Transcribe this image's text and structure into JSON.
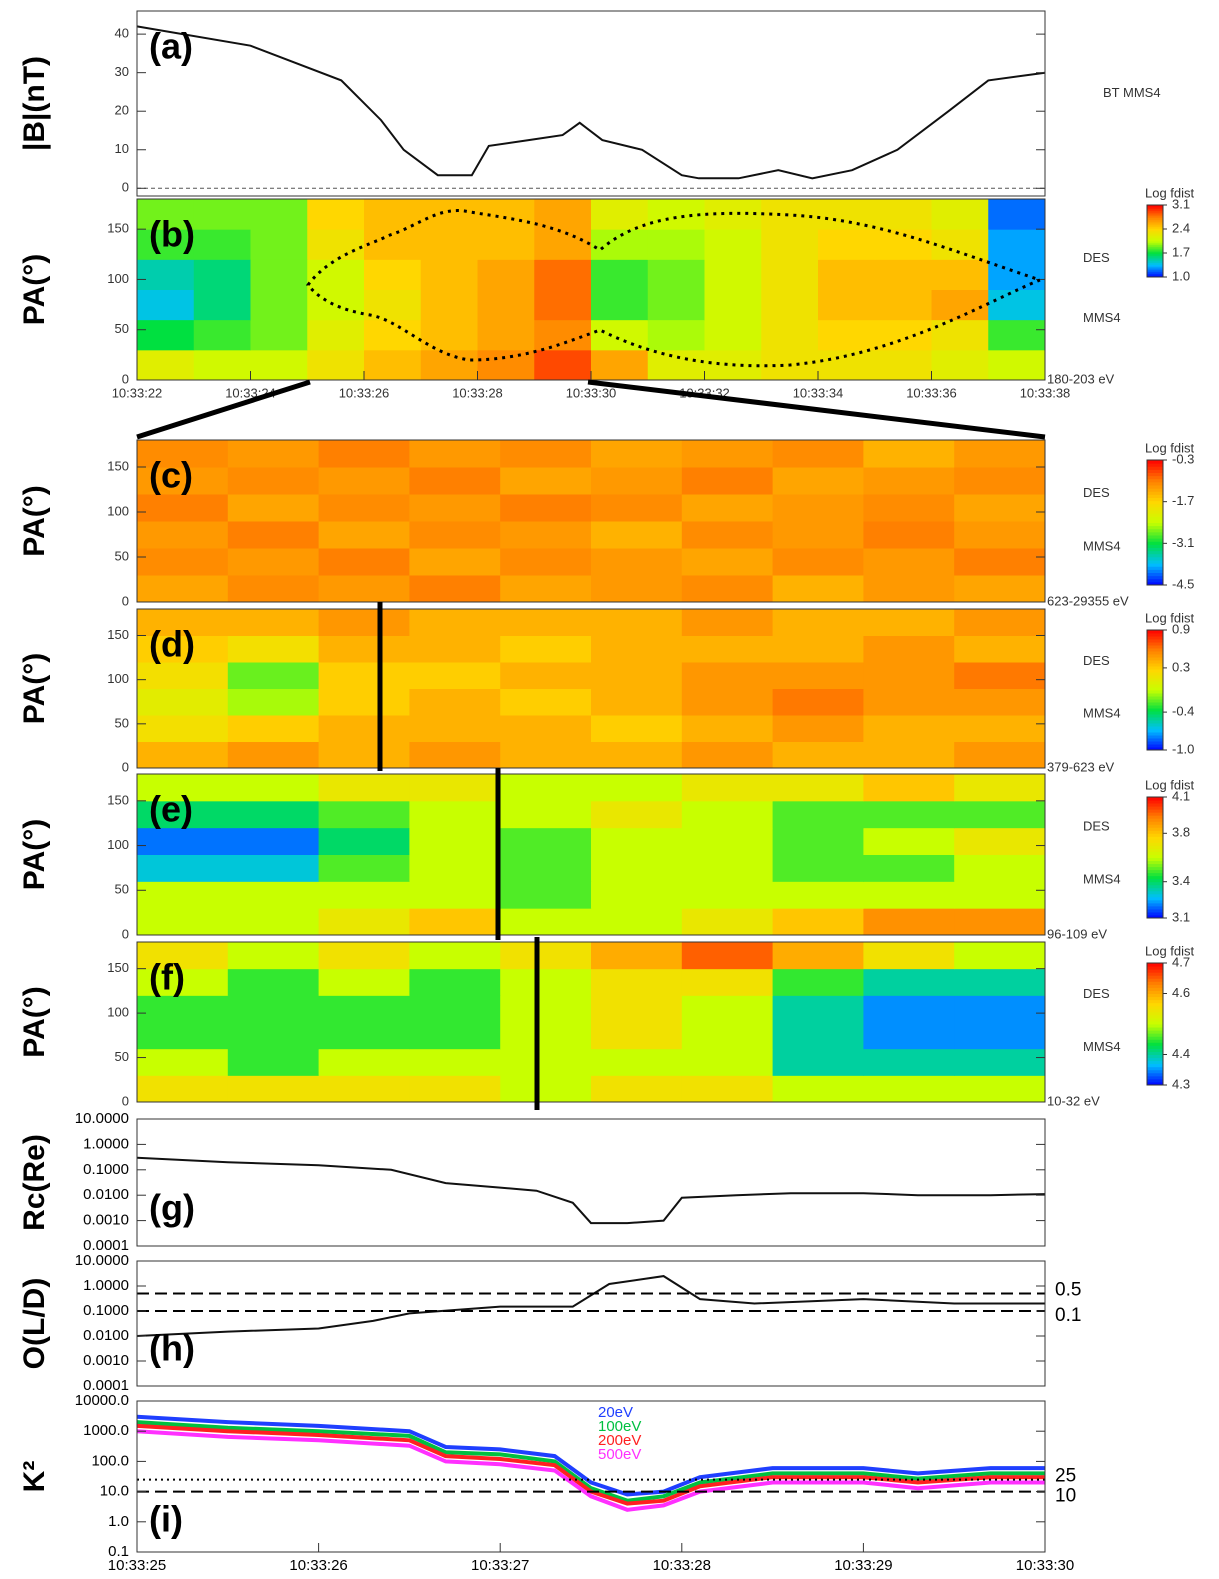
{
  "chart_data": [
    {
      "type": "line",
      "ylabel": "|B|(nT)",
      "panel_label": "(a)",
      "legend": "right",
      "xlim": [
        22,
        38
      ],
      "ylim": [
        -2,
        46
      ],
      "yticks": [
        0,
        10,
        20,
        30,
        40
      ],
      "zero_line": true,
      "x": [
        22,
        24,
        25.6,
        26.3,
        26.7,
        27.3,
        27.9,
        28.2,
        28.9,
        29.5,
        29.8,
        30.2,
        30.9,
        31.6,
        31.9,
        32.6,
        33.3,
        33.9,
        34.6,
        35.4,
        36.3,
        37,
        38
      ],
      "series": [
        {
          "name": "BT MMS4",
          "color": "#111111",
          "values": [
            42,
            37,
            28,
            17.7,
            10,
            3.4,
            3.4,
            11,
            12.5,
            13.8,
            17,
            12.5,
            10,
            3.4,
            2.6,
            2.6,
            4.7,
            2.6,
            4.7,
            10,
            20,
            28,
            30
          ]
        }
      ]
    },
    {
      "type": "heatmap",
      "ylabel": "PA(°)",
      "panel_label": "(b)",
      "side_labels": [
        "DES",
        "MMS4",
        "180-203 eV"
      ],
      "xlim": [
        22,
        38
      ],
      "ylim": [
        0,
        180
      ],
      "yticks": [
        0,
        50,
        100,
        150
      ],
      "xticks": [
        {
          "value": 22,
          "label": "10:33:22"
        },
        {
          "value": 24,
          "label": "10:33:24"
        },
        {
          "value": 26,
          "label": "10:33:26"
        },
        {
          "value": 28,
          "label": "10:33:28"
        },
        {
          "value": 30,
          "label": "10:33:30"
        },
        {
          "value": 32,
          "label": "10:33:32"
        },
        {
          "value": 34,
          "label": "10:33:34"
        },
        {
          "value": 36,
          "label": "10:33:36"
        },
        {
          "value": 38,
          "label": "10:33:38"
        }
      ],
      "xbins": [
        22,
        23,
        24,
        25,
        26,
        27,
        28,
        29,
        30,
        31,
        32,
        33,
        34,
        35,
        36,
        37,
        38
      ],
      "ybins": [
        0,
        30,
        60,
        90,
        120,
        150,
        180
      ],
      "z": [
        [
          2.2,
          2.1,
          2.1,
          2.3,
          2.5,
          2.6,
          2.7,
          2.9,
          2.6,
          2.2,
          2.2,
          2.3,
          2.3,
          2.3,
          2.2,
          2.1
        ],
        [
          1.7,
          1.8,
          1.9,
          2.2,
          2.4,
          2.5,
          2.6,
          2.7,
          2.1,
          2.0,
          2.1,
          2.3,
          2.4,
          2.4,
          2.3,
          1.8
        ],
        [
          1.4,
          1.6,
          1.9,
          2.1,
          2.3,
          2.5,
          2.6,
          2.8,
          1.8,
          1.9,
          2.1,
          2.3,
          2.5,
          2.5,
          2.6,
          1.4
        ],
        [
          1.5,
          1.6,
          1.9,
          2.1,
          2.4,
          2.5,
          2.6,
          2.8,
          1.8,
          1.9,
          2.1,
          2.3,
          2.5,
          2.5,
          2.5,
          1.3
        ],
        [
          1.8,
          1.8,
          1.9,
          2.3,
          2.5,
          2.5,
          2.5,
          2.6,
          2.0,
          2.0,
          2.1,
          2.3,
          2.4,
          2.4,
          2.3,
          1.3
        ],
        [
          1.9,
          1.9,
          1.9,
          2.4,
          2.5,
          2.5,
          2.5,
          2.6,
          2.2,
          2.1,
          2.2,
          2.3,
          2.3,
          2.3,
          2.2,
          1.2
        ]
      ],
      "colorbar_title": "Log fdist",
      "zlim": [
        1.0,
        3.1
      ],
      "zticks": [
        3.1,
        2.4,
        1.7,
        {
          "value": 1.0,
          "label": "1.0"
        }
      ],
      "colormap": [
        "#0000ff",
        "#00bfff",
        "#00e040",
        "#c8ff00",
        "#ffd700",
        "#ff8000",
        "#ff0000"
      ]
    },
    {
      "type": "heatmap",
      "ylabel": "PA(°)",
      "panel_label": "(c)",
      "side_labels": [
        "DES",
        "MMS4",
        "623-29355 eV"
      ],
      "xlim": [
        25,
        30
      ],
      "ylim": [
        0,
        180
      ],
      "yticks": [
        0,
        50,
        100,
        150
      ],
      "xbins": [
        25,
        25.5,
        26,
        26.5,
        27,
        27.5,
        28,
        28.5,
        29,
        29.5,
        30
      ],
      "ybins": [
        0,
        30,
        60,
        90,
        120,
        150,
        180
      ],
      "z": [
        [
          -1.3,
          -1.1,
          -1.2,
          -1.0,
          -1.3,
          -1.2,
          -1.1,
          -1.4,
          -1.2,
          -1.3
        ],
        [
          -1.1,
          -1.2,
          -1.0,
          -1.3,
          -1.1,
          -1.2,
          -1.3,
          -1.1,
          -1.2,
          -1.0
        ],
        [
          -1.2,
          -1.0,
          -1.3,
          -1.1,
          -1.2,
          -1.4,
          -1.1,
          -1.2,
          -1.0,
          -1.2
        ],
        [
          -1.0,
          -1.3,
          -1.1,
          -1.2,
          -1.0,
          -1.1,
          -1.3,
          -1.2,
          -1.1,
          -1.3
        ],
        [
          -1.2,
          -1.1,
          -1.2,
          -1.0,
          -1.3,
          -1.2,
          -1.0,
          -1.3,
          -1.2,
          -1.1
        ],
        [
          -1.1,
          -1.2,
          -1.0,
          -1.2,
          -1.1,
          -1.3,
          -1.2,
          -1.1,
          -1.4,
          -1.2
        ]
      ],
      "colorbar_title": "Log fdist",
      "zlim": [
        -4.5,
        -0.3
      ],
      "zticks": [
        -0.3,
        -1.7,
        -3.1,
        -4.5
      ],
      "colormap": [
        "#0000ff",
        "#00bfff",
        "#00e040",
        "#c8ff00",
        "#ffd700",
        "#ff8000",
        "#ff0000"
      ]
    },
    {
      "type": "heatmap",
      "ylabel": "PA(°)",
      "panel_label": "(d)",
      "side_labels": [
        "DES",
        "MMS4",
        "379-623 eV"
      ],
      "xlim": [
        25,
        30
      ],
      "ylim": [
        0,
        180
      ],
      "yticks": [
        0,
        50,
        100,
        150
      ],
      "xbins": [
        25,
        25.5,
        26,
        26.5,
        27,
        27.5,
        28,
        28.5,
        29,
        29.5,
        30
      ],
      "ybins": [
        0,
        30,
        60,
        90,
        120,
        150,
        180
      ],
      "z": [
        [
          0.4,
          0.5,
          0.4,
          0.5,
          0.4,
          0.4,
          0.5,
          0.4,
          0.4,
          0.5
        ],
        [
          0.2,
          0.3,
          0.4,
          0.4,
          0.4,
          0.3,
          0.4,
          0.5,
          0.4,
          0.4
        ],
        [
          0.1,
          -0.1,
          0.3,
          0.4,
          0.3,
          0.4,
          0.5,
          0.6,
          0.5,
          0.5
        ],
        [
          0.2,
          -0.2,
          0.3,
          0.3,
          0.4,
          0.4,
          0.5,
          0.5,
          0.5,
          0.6
        ],
        [
          0.3,
          0.2,
          0.4,
          0.4,
          0.3,
          0.4,
          0.4,
          0.4,
          0.5,
          0.4
        ],
        [
          0.4,
          0.4,
          0.5,
          0.4,
          0.4,
          0.4,
          0.5,
          0.4,
          0.4,
          0.5
        ]
      ],
      "colorbar_title": "Log fdist",
      "zlim": [
        -1.0,
        0.9
      ],
      "zticks": [
        0.9,
        0.3,
        -0.4,
        {
          "value": -1.0,
          "label": "-1.0"
        }
      ],
      "colormap": [
        "#0000ff",
        "#00bfff",
        "#00e040",
        "#c8ff00",
        "#ffd700",
        "#ff8000",
        "#ff0000"
      ]
    },
    {
      "type": "heatmap",
      "ylabel": "PA(°)",
      "panel_label": "(e)",
      "side_labels": [
        "DES",
        "MMS4",
        "96-109 eV"
      ],
      "xlim": [
        25,
        30
      ],
      "ylim": [
        0,
        180
      ],
      "yticks": [
        0,
        50,
        100,
        150
      ],
      "xbins": [
        25,
        25.5,
        26,
        26.5,
        27,
        27.5,
        28,
        28.5,
        29,
        29.5,
        30
      ],
      "ybins": [
        0,
        30,
        60,
        90,
        120,
        150,
        180
      ],
      "z": [
        [
          3.6,
          3.6,
          3.7,
          3.8,
          3.6,
          3.6,
          3.7,
          3.8,
          3.9,
          3.9
        ],
        [
          3.6,
          3.6,
          3.6,
          3.6,
          3.5,
          3.6,
          3.6,
          3.6,
          3.6,
          3.6
        ],
        [
          3.3,
          3.3,
          3.5,
          3.6,
          3.5,
          3.6,
          3.6,
          3.5,
          3.5,
          3.6
        ],
        [
          3.2,
          3.2,
          3.4,
          3.6,
          3.5,
          3.6,
          3.6,
          3.5,
          3.6,
          3.7
        ],
        [
          3.4,
          3.4,
          3.5,
          3.6,
          3.6,
          3.7,
          3.6,
          3.5,
          3.5,
          3.5
        ],
        [
          3.6,
          3.6,
          3.7,
          3.7,
          3.6,
          3.6,
          3.7,
          3.7,
          3.8,
          3.7
        ]
      ],
      "colorbar_title": "Log fdist",
      "zlim": [
        3.1,
        4.1
      ],
      "zticks": [
        4.1,
        3.8,
        3.4,
        3.1
      ],
      "colormap": [
        "#0000ff",
        "#00bfff",
        "#00e040",
        "#c8ff00",
        "#ffd700",
        "#ff8000",
        "#ff0000"
      ]
    },
    {
      "type": "heatmap",
      "ylabel": "PA(°)",
      "panel_label": "(f)",
      "side_labels": [
        "DES",
        "MMS4",
        "10-32 eV"
      ],
      "xlim": [
        25,
        30
      ],
      "ylim": [
        0,
        180
      ],
      "yticks": [
        0,
        50,
        100,
        150
      ],
      "xbins": [
        25,
        25.5,
        26,
        26.5,
        27,
        27.5,
        28,
        28.5,
        29,
        29.5,
        30
      ],
      "ybins": [
        0,
        30,
        60,
        90,
        120,
        150,
        180
      ],
      "z": [
        [
          4.55,
          4.55,
          4.55,
          4.55,
          4.5,
          4.55,
          4.55,
          4.5,
          4.5,
          4.5
        ],
        [
          4.5,
          4.45,
          4.5,
          4.5,
          4.5,
          4.5,
          4.5,
          4.4,
          4.4,
          4.4
        ],
        [
          4.45,
          4.45,
          4.45,
          4.45,
          4.5,
          4.55,
          4.5,
          4.4,
          4.35,
          4.35
        ],
        [
          4.45,
          4.45,
          4.45,
          4.45,
          4.5,
          4.55,
          4.5,
          4.4,
          4.35,
          4.35
        ],
        [
          4.5,
          4.45,
          4.5,
          4.45,
          4.5,
          4.55,
          4.55,
          4.45,
          4.4,
          4.4
        ],
        [
          4.55,
          4.5,
          4.55,
          4.5,
          4.55,
          4.6,
          4.65,
          4.6,
          4.55,
          4.5
        ]
      ],
      "colorbar_title": "Log fdist",
      "zlim": [
        4.3,
        4.7
      ],
      "zticks": [
        4.7,
        4.6,
        4.4,
        4.3
      ],
      "colormap": [
        "#0000ff",
        "#00bfff",
        "#00e040",
        "#c8ff00",
        "#ffd700",
        "#ff8000",
        "#ff0000"
      ]
    },
    {
      "type": "line",
      "ylabel": "Rc(Re)",
      "panel_label": "(g)",
      "log": true,
      "xlim": [
        25,
        30
      ],
      "ylim": [
        0.0001,
        10
      ],
      "yticks": [
        {
          "value": 10,
          "label": "10.0000"
        },
        {
          "value": 1,
          "label": "1.0000"
        },
        {
          "value": 0.1,
          "label": "0.1000"
        },
        {
          "value": 0.01,
          "label": "0.0100"
        },
        {
          "value": 0.001,
          "label": "0.0010"
        },
        {
          "value": 0.0001,
          "label": "0.0001"
        }
      ],
      "x": [
        25,
        25.5,
        26,
        26.4,
        26.7,
        27,
        27.2,
        27.4,
        27.5,
        27.7,
        27.9,
        28,
        28.3,
        28.6,
        29,
        29.3,
        29.7,
        30
      ],
      "series": [
        {
          "color": "#111111",
          "values": [
            0.3,
            0.2,
            0.15,
            0.1,
            0.03,
            0.02,
            0.015,
            0.005,
            0.0008,
            0.0008,
            0.001,
            0.008,
            0.01,
            0.012,
            0.012,
            0.01,
            0.01,
            0.011
          ]
        }
      ]
    },
    {
      "type": "line",
      "ylabel": "O(L/D)",
      "panel_label": "(h)",
      "log": true,
      "xlim": [
        25,
        30
      ],
      "ylim": [
        0.0001,
        10
      ],
      "yticks": [
        {
          "value": 10,
          "label": "10.0000"
        },
        {
          "value": 1,
          "label": "1.0000"
        },
        {
          "value": 0.1,
          "label": "0.1000"
        },
        {
          "value": 0.01,
          "label": "0.0100"
        },
        {
          "value": 0.001,
          "label": "0.0010"
        },
        {
          "value": 0.0001,
          "label": "0.0001"
        }
      ],
      "hlines": [
        0.5,
        0.1
      ],
      "hline_styles": [
        "dashed",
        "dashed"
      ],
      "x": [
        25,
        25.5,
        26,
        26.3,
        26.5,
        27,
        27.4,
        27.6,
        27.9,
        28.1,
        28.4,
        29,
        29.5,
        30
      ],
      "series": [
        {
          "color": "#111111",
          "values": [
            0.01,
            0.015,
            0.02,
            0.04,
            0.08,
            0.15,
            0.15,
            1.2,
            2.5,
            0.3,
            0.2,
            0.3,
            0.2,
            0.2
          ]
        }
      ]
    },
    {
      "type": "line",
      "ylabel": "K²",
      "panel_label": "(i)",
      "log": true,
      "legend": "top",
      "xlim": [
        25,
        30
      ],
      "ylim": [
        0.1,
        10000
      ],
      "yticks": [
        {
          "value": 10000,
          "label": "10000.0"
        },
        {
          "value": 1000,
          "label": "1000.0"
        },
        {
          "value": 100,
          "label": "100.0"
        },
        {
          "value": 10,
          "label": "10.0"
        },
        {
          "value": 1,
          "label": "1.0"
        },
        0.1
      ],
      "xticks": [
        {
          "value": 25,
          "label": "10:33:25"
        },
        {
          "value": 26,
          "label": "10:33:26"
        },
        {
          "value": 27,
          "label": "10:33:27"
        },
        {
          "value": 28,
          "label": "10:33:28"
        },
        {
          "value": 29,
          "label": "10:33:29"
        },
        {
          "value": 30,
          "label": "10:33:30"
        }
      ],
      "hlines": [
        25,
        10
      ],
      "hline_styles": [
        "dotted",
        "dashed"
      ],
      "x": [
        25,
        25.5,
        26,
        26.5,
        26.7,
        27,
        27.3,
        27.5,
        27.7,
        27.9,
        28.1,
        28.5,
        29,
        29.3,
        29.7,
        30
      ],
      "series": [
        {
          "name": "20eV",
          "color": "#1f3fff",
          "values": [
            3000,
            2000,
            1500,
            1000,
            300,
            250,
            150,
            20,
            8,
            10,
            30,
            60,
            60,
            40,
            60,
            60
          ]
        },
        {
          "name": "100eV",
          "color": "#00c040",
          "values": [
            2000,
            1300,
            1000,
            700,
            200,
            170,
            100,
            13,
            5,
            7,
            20,
            40,
            40,
            27,
            40,
            40
          ]
        },
        {
          "name": "200eV",
          "color": "#ff2020",
          "values": [
            1500,
            1000,
            750,
            500,
            150,
            120,
            75,
            10,
            4,
            5,
            15,
            30,
            30,
            20,
            30,
            30
          ]
        },
        {
          "name": "500eV",
          "color": "#ff30ff",
          "values": [
            1000,
            650,
            500,
            330,
            100,
            80,
            50,
            7,
            2.5,
            3.5,
            10,
            20,
            20,
            13,
            20,
            20
          ]
        }
      ]
    }
  ]
}
